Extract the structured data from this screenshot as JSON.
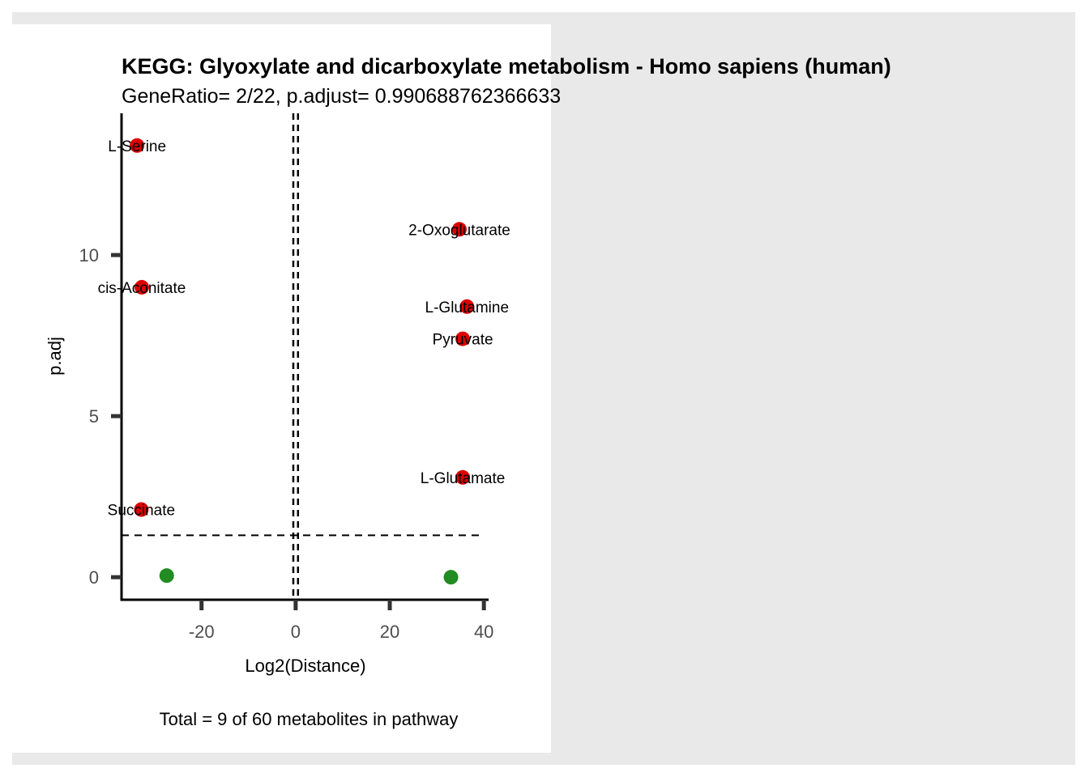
{
  "chart_data": {
    "type": "scatter",
    "title": "KEGG: Glyoxylate and dicarboxylate metabolism - Homo sapiens (human)",
    "subtitle": "GeneRatio= 2/22, p.adjust= 0.990688762366633",
    "xlabel": "Log2(Distance)",
    "ylabel": "p.adj",
    "caption": "Total = 9 of 60 metabolites in pathway",
    "xlim": [
      -37,
      41
    ],
    "ylim": [
      -0.7,
      14.4
    ],
    "x_ticks": [
      -20,
      0,
      20,
      40
    ],
    "y_ticks": [
      0,
      5,
      10
    ],
    "threshold_y": 1.3,
    "threshold_x": [
      -0.5,
      0.5
    ],
    "grid": false,
    "colors": {
      "significant": "#dd0000",
      "not_significant": "#228b22"
    },
    "points": [
      {
        "label": "L-Serine",
        "x": -33.7,
        "y": 13.4,
        "color": "#dd0000"
      },
      {
        "label": "2-Oxoglutarate",
        "x": 34.8,
        "y": 10.8,
        "color": "#dd0000"
      },
      {
        "label": "cis-Aconitate",
        "x": -32.7,
        "y": 9.0,
        "color": "#dd0000"
      },
      {
        "label": "L-Glutamine",
        "x": 36.4,
        "y": 8.4,
        "color": "#dd0000"
      },
      {
        "label": "Pyruvate",
        "x": 35.5,
        "y": 7.4,
        "color": "#dd0000"
      },
      {
        "label": "L-Glutamate",
        "x": 35.5,
        "y": 3.1,
        "color": "#dd0000"
      },
      {
        "label": "Succinate",
        "x": -32.8,
        "y": 2.1,
        "color": "#dd0000"
      },
      {
        "label": "",
        "x": -27.4,
        "y": 0.05,
        "color": "#228b22"
      },
      {
        "label": "",
        "x": 33.0,
        "y": 0.0,
        "color": "#228b22"
      }
    ]
  }
}
